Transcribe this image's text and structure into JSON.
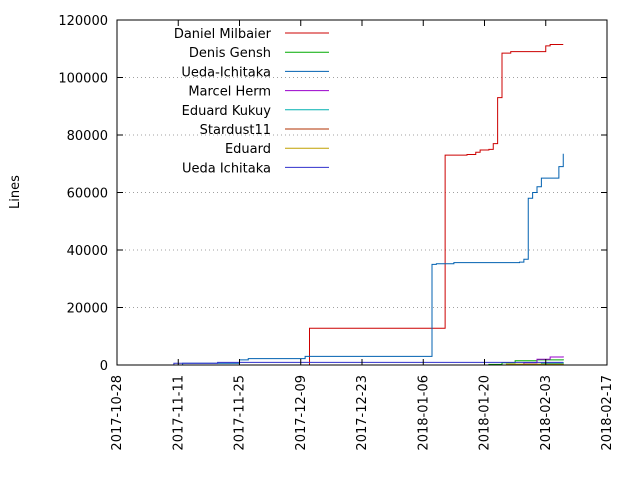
{
  "chart_data": {
    "type": "line",
    "title": "",
    "xlabel": "",
    "ylabel": "Lines",
    "x_type": "date",
    "xlim": [
      "2017-10-28",
      "2018-02-17"
    ],
    "ylim": [
      0,
      120000
    ],
    "x_ticks": [
      "2017-10-28",
      "2017-11-11",
      "2017-11-25",
      "2017-12-09",
      "2017-12-23",
      "2018-01-06",
      "2018-01-20",
      "2018-02-03",
      "2018-02-17"
    ],
    "y_ticks": [
      0,
      20000,
      40000,
      60000,
      80000,
      100000,
      120000
    ],
    "y_tick_labels": [
      "0",
      "20000",
      "40000",
      "60000",
      "80000",
      "100000",
      "120000"
    ],
    "grid": "horizontal-dotted",
    "legend": "top-left",
    "series": [
      {
        "name": "Daniel Milbaier",
        "color": "#cc0000",
        "step": true,
        "points": [
          [
            "2017-11-30",
            0
          ],
          [
            "2017-12-11",
            12800
          ],
          [
            "2018-01-10",
            12800
          ],
          [
            "2018-01-11",
            73000
          ],
          [
            "2018-01-16",
            73200
          ],
          [
            "2018-01-18",
            74000
          ],
          [
            "2018-01-19",
            74800
          ],
          [
            "2018-01-21",
            75000
          ],
          [
            "2018-01-22",
            77000
          ],
          [
            "2018-01-23",
            93000
          ],
          [
            "2018-01-24",
            108500
          ],
          [
            "2018-01-26",
            109000
          ],
          [
            "2018-02-02",
            109000
          ],
          [
            "2018-02-03",
            111000
          ],
          [
            "2018-02-04",
            111500
          ],
          [
            "2018-02-07",
            111500
          ]
        ]
      },
      {
        "name": "Denis Gensh",
        "color": "#00aa00",
        "step": true,
        "points": [
          [
            "2018-01-14",
            0
          ],
          [
            "2018-01-21",
            200
          ],
          [
            "2018-01-24",
            800
          ],
          [
            "2018-01-27",
            1500
          ],
          [
            "2018-02-01",
            1800
          ],
          [
            "2018-02-07",
            2000
          ]
        ]
      },
      {
        "name": "Ueda-Ichitaka",
        "color": "#0060b0",
        "step": true,
        "points": [
          [
            "2017-11-07",
            0
          ],
          [
            "2017-11-12",
            600
          ],
          [
            "2017-11-25",
            1800
          ],
          [
            "2017-11-27",
            2200
          ],
          [
            "2017-12-09",
            2200
          ],
          [
            "2017-12-10",
            3000
          ],
          [
            "2018-01-08",
            35000
          ],
          [
            "2018-01-09",
            35200
          ],
          [
            "2018-01-13",
            35600
          ],
          [
            "2018-01-28",
            35800
          ],
          [
            "2018-01-29",
            36800
          ],
          [
            "2018-01-30",
            58000
          ],
          [
            "2018-01-31",
            60000
          ],
          [
            "2018-02-01",
            62000
          ],
          [
            "2018-02-02",
            65000
          ],
          [
            "2018-02-05",
            65000
          ],
          [
            "2018-02-06",
            69000
          ],
          [
            "2018-02-07",
            73500
          ]
        ]
      },
      {
        "name": "Marcel Herm",
        "color": "#9900cc",
        "step": true,
        "points": [
          [
            "2018-01-21",
            0
          ],
          [
            "2018-01-29",
            800
          ],
          [
            "2018-02-01",
            2000
          ],
          [
            "2018-02-04",
            2800
          ],
          [
            "2018-02-07",
            3000
          ]
        ]
      },
      {
        "name": "Eduard Kukuy",
        "color": "#00b0b0",
        "step": true,
        "points": [
          [
            "2018-01-26",
            0
          ],
          [
            "2018-02-02",
            600
          ],
          [
            "2018-02-07",
            1000
          ]
        ]
      },
      {
        "name": "Stardust11",
        "color": "#b03000",
        "step": true,
        "points": [
          [
            "2018-01-27",
            0
          ],
          [
            "2018-02-07",
            200
          ]
        ]
      },
      {
        "name": "Eduard",
        "color": "#c0a000",
        "step": true,
        "points": [
          [
            "2018-01-17",
            0
          ],
          [
            "2018-01-25",
            300
          ],
          [
            "2018-02-07",
            500
          ]
        ]
      },
      {
        "name": "Ueda Ichitaka",
        "color": "#3030cc",
        "step": true,
        "points": [
          [
            "2017-11-07",
            0
          ],
          [
            "2017-11-10",
            600
          ],
          [
            "2017-11-20",
            900
          ],
          [
            "2018-02-07",
            900
          ]
        ]
      }
    ]
  }
}
